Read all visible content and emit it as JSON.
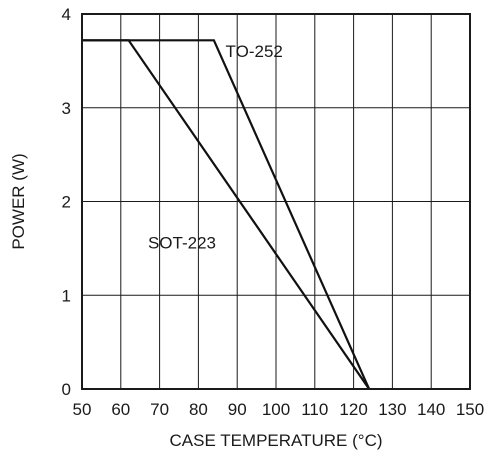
{
  "chart_data": {
    "type": "line",
    "title": "",
    "xlabel": "CASE TEMPERATURE (°C)",
    "ylabel": "POWER (W)",
    "xlim": [
      50,
      150
    ],
    "ylim": [
      0,
      4
    ],
    "x_ticks": [
      50,
      60,
      70,
      80,
      90,
      100,
      110,
      120,
      130,
      140,
      150
    ],
    "y_ticks": [
      0,
      1,
      2,
      3,
      4
    ],
    "grid": true,
    "legend": "none",
    "series": [
      {
        "name": "TO-252",
        "x": [
          50,
          84,
          124
        ],
        "y": [
          3.72,
          3.72,
          0
        ]
      },
      {
        "name": "SOT-223",
        "x": [
          50,
          62,
          124
        ],
        "y": [
          3.72,
          3.72,
          0
        ]
      }
    ],
    "series_label_anchors": [
      {
        "name": "TO-252",
        "x": 87,
        "y": 3.54
      },
      {
        "name": "SOT-223",
        "x": 67,
        "y": 1.5
      }
    ],
    "colors": {
      "line": "#111111",
      "grid": "#1a1a1a"
    }
  }
}
